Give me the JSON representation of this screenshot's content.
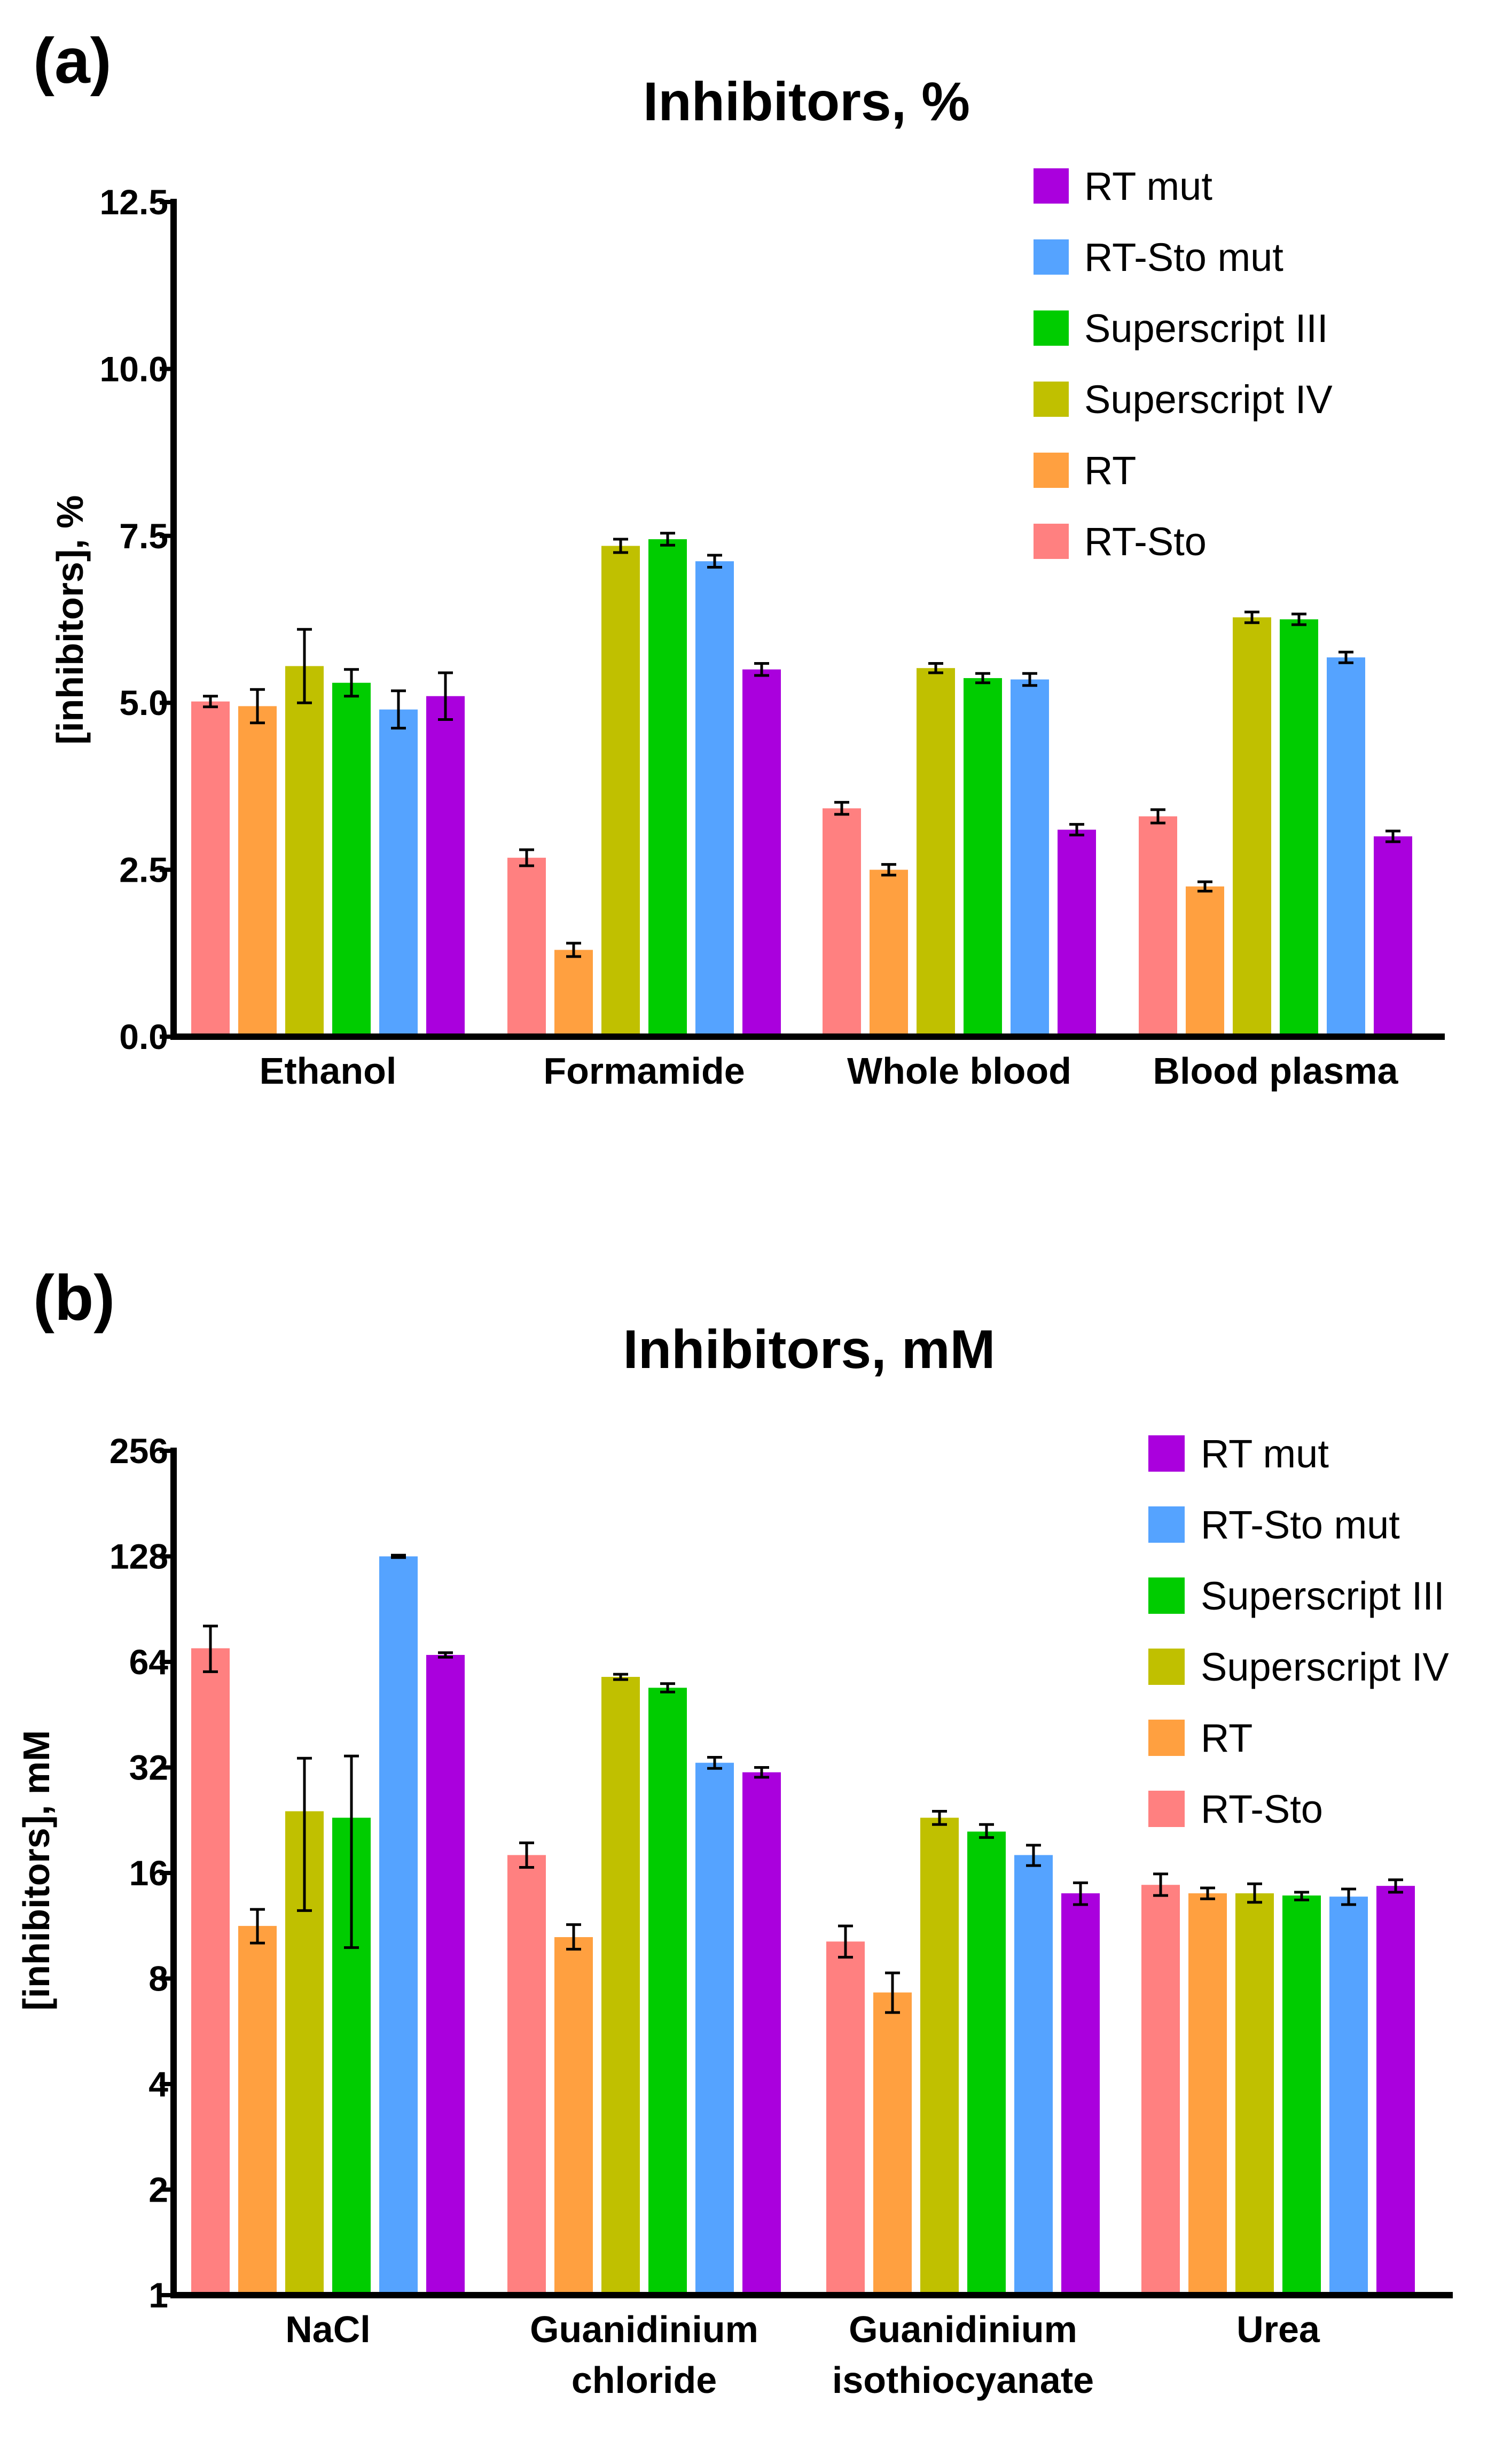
{
  "chart_data": [
    {
      "panel_label": "(a)",
      "type": "bar",
      "scale": "linear",
      "title": "Inhibitors, %",
      "xlabel": "",
      "ylabel": "[inhibitors], %",
      "ylim": [
        0,
        12.5
      ],
      "yticks": [
        0.0,
        2.5,
        5.0,
        7.5,
        10.0,
        12.5
      ],
      "ytick_labels": [
        "0.0",
        "2.5",
        "5.0",
        "7.5",
        "10.0",
        "12.5"
      ],
      "categories": [
        [
          "Ethanol"
        ],
        [
          "Formamide"
        ],
        [
          "Whole blood"
        ],
        [
          "Blood plasma"
        ]
      ],
      "legend_position": "top-right",
      "series": [
        {
          "name": "RT-Sto",
          "color": "#FF8080",
          "values": [
            5.02,
            2.68,
            3.42,
            3.3
          ],
          "errors": [
            0.08,
            0.12,
            0.09,
            0.1
          ]
        },
        {
          "name": "RT",
          "color": "#FFA040",
          "values": [
            4.95,
            1.3,
            2.5,
            2.25
          ],
          "errors": [
            0.25,
            0.1,
            0.08,
            0.07
          ]
        },
        {
          "name": "Superscript IV",
          "color": "#C0C000",
          "values": [
            5.55,
            7.35,
            5.52,
            6.28
          ],
          "errors": [
            0.55,
            0.1,
            0.07,
            0.08
          ]
        },
        {
          "name": "Superscript III",
          "color": "#00CC00",
          "values": [
            5.3,
            7.45,
            5.37,
            6.25
          ],
          "errors": [
            0.2,
            0.09,
            0.07,
            0.08
          ]
        },
        {
          "name": "RT-Sto mut",
          "color": "#55A3FF",
          "values": [
            4.9,
            7.12,
            5.35,
            5.68
          ],
          "errors": [
            0.28,
            0.09,
            0.09,
            0.08
          ]
        },
        {
          "name": "RT mut",
          "color": "#AA00DD",
          "values": [
            5.1,
            5.5,
            3.1,
            3.0
          ],
          "errors": [
            0.35,
            0.09,
            0.08,
            0.08
          ]
        }
      ],
      "legend_order": [
        "RT mut",
        "RT-Sto mut",
        "Superscript III",
        "Superscript IV",
        "RT",
        "RT-Sto"
      ]
    },
    {
      "panel_label": "(b)",
      "type": "bar",
      "scale": "log2",
      "title": "Inhibitors, mM",
      "xlabel": "",
      "ylabel": "[inhibitors], mM",
      "ylim": [
        1,
        256
      ],
      "yticks": [
        1,
        2,
        4,
        8,
        16,
        32,
        64,
        128,
        256
      ],
      "ytick_labels": [
        "1",
        "2",
        "4",
        "8",
        "16",
        "32",
        "64",
        "128",
        "256"
      ],
      "categories": [
        [
          "NaCl"
        ],
        [
          "Guanidinium",
          "chloride"
        ],
        [
          "Guanidinium",
          "isothiocyanate"
        ],
        [
          "Urea"
        ]
      ],
      "legend_position": "top-right",
      "series": [
        {
          "name": "RT-Sto",
          "color": "#FF8080",
          "values": [
            70,
            18,
            10.2,
            14.8
          ],
          "err_low": [
            60,
            16.6,
            9.2,
            13.8
          ],
          "err_high": [
            81,
            19.5,
            11.3,
            15.9
          ]
        },
        {
          "name": "RT",
          "color": "#FFA040",
          "values": [
            11.3,
            10.5,
            7.3,
            14.0
          ],
          "err_low": [
            10.1,
            9.7,
            6.4,
            13.5
          ],
          "err_high": [
            12.6,
            11.4,
            8.3,
            14.5
          ]
        },
        {
          "name": "Superscript IV",
          "color": "#C0C000",
          "values": [
            24,
            58,
            23,
            14.0
          ],
          "err_low": [
            12.5,
            57,
            22,
            13.2
          ],
          "err_high": [
            34,
            59,
            24,
            14.9
          ]
        },
        {
          "name": "Superscript III",
          "color": "#00CC00",
          "values": [
            23,
            54,
            21,
            13.8
          ],
          "err_low": [
            9.8,
            52.5,
            20.2,
            13.4
          ],
          "err_high": [
            34.5,
            55.5,
            22,
            14.1
          ]
        },
        {
          "name": "RT-Sto mut",
          "color": "#55A3FF",
          "values": [
            128,
            33,
            18,
            13.7
          ],
          "err_low": [
            127,
            31.8,
            16.8,
            13.0
          ],
          "err_high": [
            129,
            34.2,
            19.2,
            14.4
          ]
        },
        {
          "name": "RT mut",
          "color": "#AA00DD",
          "values": [
            67,
            31,
            14,
            14.7
          ],
          "err_low": [
            66,
            30,
            13,
            14.1
          ],
          "err_high": [
            68,
            32,
            15,
            15.3
          ]
        }
      ],
      "legend_order": [
        "RT mut",
        "RT-Sto mut",
        "Superscript III",
        "Superscript IV",
        "RT",
        "RT-Sto"
      ]
    }
  ]
}
